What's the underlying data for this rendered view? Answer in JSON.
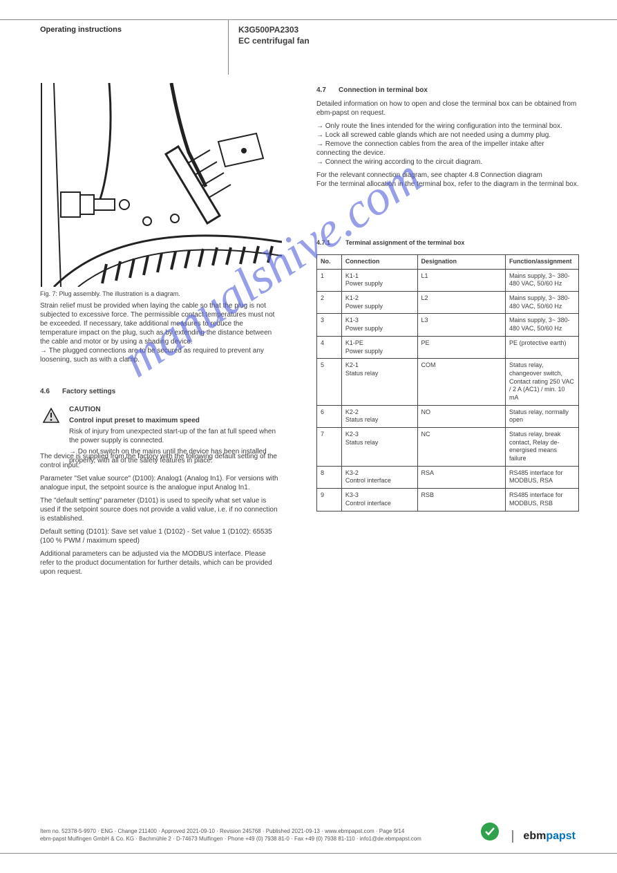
{
  "header": {
    "left_line1": "Operating instructions",
    "left_line2": "",
    "right_line1": "K3G500PA2303",
    "right_line2": "EC centrifugal fan"
  },
  "figure": {
    "caption": "Fig. 7: Plug assembly. The illustration is a diagram."
  },
  "left": {
    "strain_relief_text_1": "Strain relief must be provided when laying the cable so that the plug is not subjected to excessive force. The permissible contact temperatures must not be exceeded. If necessary, take additional measures to reduce the temperature impact on the plug, such as by extending the distance between the cable and motor or by using a shading device.",
    "strain_relief_text_2": "→ The plugged connections are to be secured as required to prevent any loosening, such as with a clamp.",
    "section_4_6_num": "4.6",
    "section_4_6_title": "Factory settings",
    "caution_label": "CAUTION",
    "caution_heading": "Control input preset to maximum speed",
    "caution_body": "Risk of injury from unexpected start-up of the fan at full speed when the power supply is connected.",
    "caution_arrow": "→ Do not switch on the mains until the device has been installed properly, with all of the safety features in place.",
    "factory_text_1": "The device is supplied from the factory with the following default setting of the control input:",
    "factory_text_2": "Parameter \"Set value source\" (D100): Analog1 (Analog In1). For versions with analogue input, the setpoint source is the analogue input Analog In1.",
    "factory_text_3": "The \"default setting\" parameter (D101) is used to specify what set value is used if the setpoint source does not provide a valid value, i.e. if no connection is established.",
    "factory_text_4": "Default setting (D101): Save set value 1 (D102) - Set value 1 (D102): 65535 (100 % PWM / maximum speed)",
    "factory_text_5": "Additional parameters can be adjusted via the MODBUS interface. Please refer to the product documentation for further details, which can be provided upon request."
  },
  "right": {
    "section_4_7_num": "4.7",
    "section_4_7_title": "Connection in terminal box",
    "intro_text": "Detailed information on how to open and close the terminal box can be obtained from ebm-papst on request.",
    "connect_instr_1": "→ Only route the lines intended for the wiring configuration into the terminal box.",
    "connect_instr_2": "→ Lock all screwed cable glands which are not needed using a dummy plug.",
    "connect_instr_3": "→ Remove the connection cables from the area of the impeller intake after connecting the device.",
    "connect_instr_4": "→ Connect the wiring according to the circuit diagram.",
    "connect_instr_5": "For the relevant connection diagram, see chapter 4.8 Connection diagram",
    "connect_instr_6": "For the terminal allocation in the terminal box, refer to the diagram in the terminal box.",
    "sub_num": "4.7.1",
    "sub_title": "Terminal assignment of the terminal box"
  },
  "table": {
    "headers": [
      "No.",
      "Connection",
      "Designation",
      "Function/assignment"
    ],
    "rows": [
      [
        "1",
        "K1-1\nPower supply",
        "L1",
        "Mains supply, 3~ 380-480 VAC, 50/60 Hz"
      ],
      [
        "2",
        "K1-2\nPower supply",
        "L2",
        "Mains supply, 3~ 380-480 VAC, 50/60 Hz"
      ],
      [
        "3",
        "K1-3\nPower supply",
        "L3",
        "Mains supply, 3~ 380-480 VAC, 50/60 Hz"
      ],
      [
        "4",
        "K1-PE\nPower supply",
        "PE",
        "PE (protective earth)"
      ],
      [
        "5",
        "K2-1\nStatus relay",
        "COM",
        "Status relay, changeover switch, Contact rating 250 VAC / 2 A (AC1) / min. 10 mA"
      ],
      [
        "6",
        "K2-2\nStatus relay",
        "NO",
        "Status relay, normally open"
      ],
      [
        "7",
        "K2-3\nStatus relay",
        "NC",
        "Status relay, break contact, Relay de-energised means failure"
      ],
      [
        "8",
        "K3-2\nControl interface",
        "RSA",
        "RS485 interface for MODBUS, RSA"
      ],
      [
        "9",
        "K3-3\nControl interface",
        "RSB",
        "RS485 interface for MODBUS, RSB"
      ]
    ]
  },
  "footer": {
    "item": "Item no. 52378-5-9970 · ENG · Change 211400 · Approved 2021-09-10 · Revision 245768 · Published 2021-09-13 · www.ebmpapst.com · Page 9/14",
    "company": "ebm-papst Mulfingen GmbH & Co. KG · Bachmühle 2 · D-74673 Mulfingen · Phone +49 (0) 7938 81-0 · Fax +49 (0) 7938 81-110 · info1@de.ebmpapst.com",
    "logo_ebm": "ebm",
    "logo_papst": "papst",
    "badge": "GREEN TECH"
  },
  "watermark": "manualshive.com",
  "colors": {
    "text": "#3c3c3c",
    "rule": "#888888",
    "table_border": "#444444",
    "watermark": "rgba(88,100,220,0.62)",
    "logo_blue": "#0072bc",
    "logo_black": "#222222",
    "badge_green": "#2fa24b"
  }
}
